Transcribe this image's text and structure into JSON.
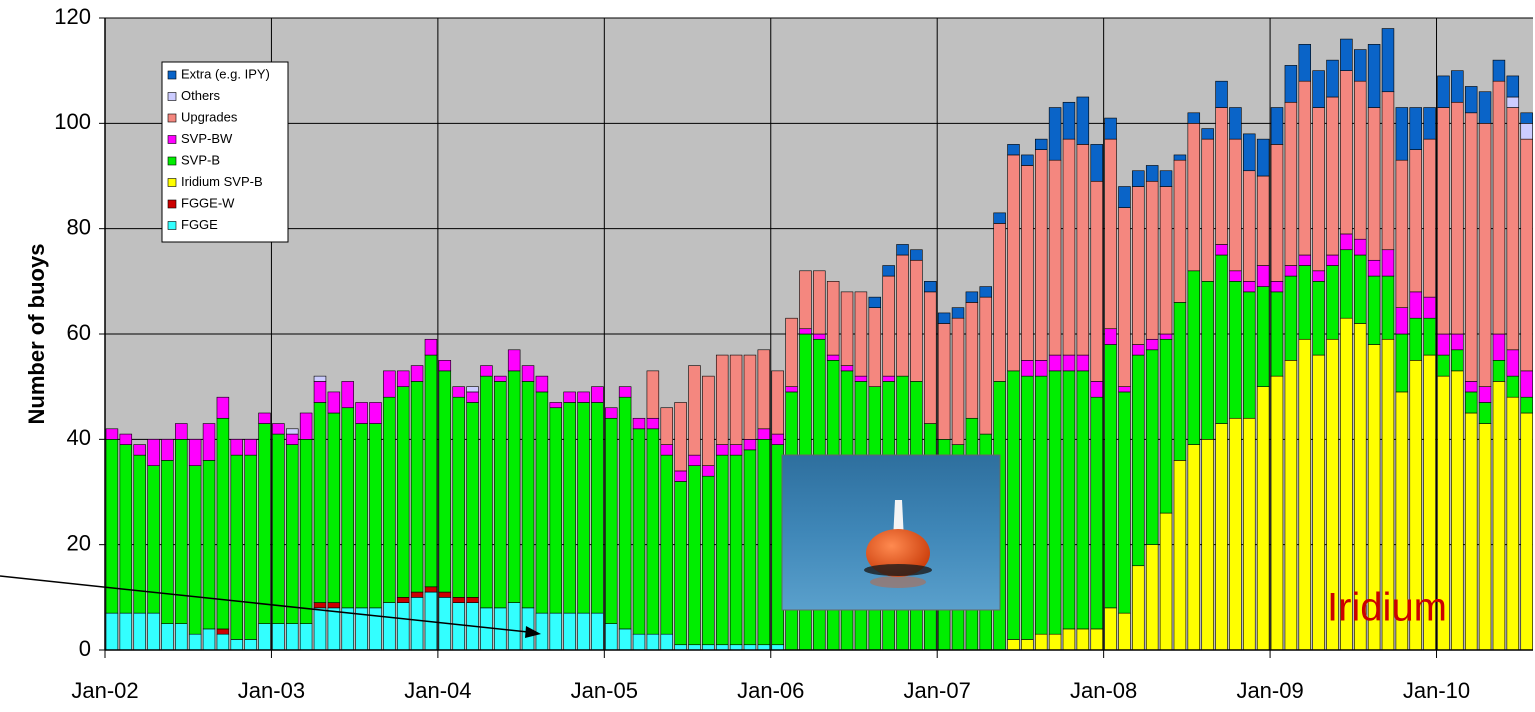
{
  "chart_data": {
    "type": "stacked_bar",
    "y_label": "Number of buoys",
    "annotation": "Iridium",
    "categories": [
      "Jan-02",
      null,
      null,
      null,
      null,
      null,
      null,
      null,
      null,
      null,
      null,
      null,
      "Jan-03",
      null,
      null,
      null,
      null,
      null,
      null,
      null,
      null,
      null,
      null,
      null,
      "Jan-04",
      null,
      null,
      null,
      null,
      null,
      null,
      null,
      null,
      null,
      null,
      null,
      "Jan-05",
      null,
      null,
      null,
      null,
      null,
      null,
      null,
      null,
      null,
      null,
      null,
      "Jan-06",
      null,
      null,
      null,
      null,
      null,
      null,
      null,
      null,
      null,
      null,
      null,
      "Jan-07",
      null,
      null,
      null,
      null,
      null,
      null,
      null,
      null,
      null,
      null,
      null,
      "Jan-08",
      null,
      null,
      null,
      null,
      null,
      null,
      null,
      null,
      null,
      null,
      null,
      "Jan-09",
      null,
      null,
      null,
      null,
      null,
      null,
      null,
      null,
      null,
      null,
      null,
      "Jan-10",
      null,
      null,
      null,
      null,
      null,
      null
    ],
    "ylim": [
      0,
      120
    ],
    "yticks": [
      0,
      20,
      40,
      60,
      80,
      100,
      120
    ],
    "grid": true,
    "background": "#c0c0c0",
    "legend": "upper-left",
    "series": [
      {
        "name": "FGGE",
        "color": "#33ffff",
        "values": [
          7,
          7,
          7,
          7,
          5,
          5,
          3,
          4,
          3,
          2,
          2,
          5,
          5,
          5,
          5,
          8,
          8,
          8,
          8,
          8,
          9,
          9,
          10,
          11,
          10,
          9,
          9,
          8,
          8,
          9,
          8,
          7,
          7,
          7,
          7,
          7,
          5,
          4,
          3,
          3,
          3,
          1,
          1,
          1,
          1,
          1,
          1,
          1,
          1,
          0,
          0,
          0,
          0,
          0,
          0,
          0,
          0,
          0,
          0,
          0,
          0,
          0,
          0,
          0,
          0,
          0,
          0,
          0,
          0,
          0,
          0,
          0,
          0,
          0,
          0,
          0,
          0,
          0,
          0,
          0,
          0,
          0,
          0,
          0,
          0,
          0,
          0,
          0,
          0,
          0,
          0,
          0,
          0,
          0,
          0,
          0,
          0,
          0,
          0,
          0,
          0,
          0,
          0
        ]
      },
      {
        "name": "FGGE-W",
        "color": "#cc0000",
        "values": [
          0,
          0,
          0,
          0,
          0,
          0,
          0,
          0,
          1,
          0,
          0,
          0,
          0,
          0,
          0,
          1,
          1,
          0,
          0,
          0,
          0,
          1,
          1,
          1,
          1,
          1,
          1,
          0,
          0,
          0,
          0,
          0,
          0,
          0,
          0,
          0,
          0,
          0,
          0,
          0,
          0,
          0,
          0,
          0,
          0,
          0,
          0,
          0,
          0,
          0,
          0,
          0,
          0,
          0,
          0,
          0,
          0,
          0,
          0,
          0,
          0,
          0,
          0,
          0,
          0,
          0,
          0,
          0,
          0,
          0,
          0,
          0,
          0,
          0,
          0,
          0,
          0,
          0,
          0,
          0,
          0,
          0,
          0,
          0,
          0,
          0,
          0,
          0,
          0,
          0,
          0,
          0,
          0,
          0,
          0,
          0,
          0,
          0,
          0,
          0,
          0,
          0,
          0
        ]
      },
      {
        "name": "Iridium SVP-B",
        "color": "#ffff00",
        "values": [
          0,
          0,
          0,
          0,
          0,
          0,
          0,
          0,
          0,
          0,
          0,
          0,
          0,
          0,
          0,
          0,
          0,
          0,
          0,
          0,
          0,
          0,
          0,
          0,
          0,
          0,
          0,
          0,
          0,
          0,
          0,
          0,
          0,
          0,
          0,
          0,
          0,
          0,
          0,
          0,
          0,
          0,
          0,
          0,
          0,
          0,
          0,
          0,
          0,
          0,
          0,
          0,
          0,
          0,
          0,
          0,
          0,
          0,
          0,
          0,
          0,
          0,
          0,
          0,
          0,
          2,
          2,
          3,
          3,
          4,
          4,
          4,
          8,
          7,
          16,
          20,
          26,
          36,
          39,
          40,
          43,
          44,
          44,
          50,
          52,
          55,
          59,
          56,
          59,
          63,
          62,
          58,
          59,
          49,
          55,
          56,
          52,
          53,
          45,
          43,
          51,
          48,
          45
        ]
      },
      {
        "name": "SVP-B",
        "color": "#00ee00",
        "values": [
          33,
          32,
          30,
          28,
          31,
          35,
          32,
          32,
          40,
          35,
          35,
          38,
          36,
          34,
          35,
          38,
          36,
          38,
          35,
          35,
          39,
          40,
          40,
          44,
          42,
          38,
          37,
          44,
          43,
          44,
          43,
          42,
          39,
          40,
          40,
          40,
          39,
          44,
          39,
          39,
          34,
          31,
          34,
          32,
          36,
          36,
          37,
          39,
          38,
          49,
          60,
          59,
          55,
          53,
          51,
          50,
          51,
          52,
          51,
          43,
          40,
          39,
          44,
          41,
          51,
          51,
          50,
          49,
          50,
          49,
          49,
          44,
          50,
          42,
          40,
          37,
          33,
          30,
          33,
          30,
          32,
          26,
          24,
          19,
          16,
          16,
          14,
          14,
          14,
          13,
          13,
          13,
          12,
          11,
          8,
          7,
          4,
          4,
          4,
          4,
          4,
          4,
          3
        ]
      },
      {
        "name": "SVP-BW",
        "color": "#ff00ff",
        "values": [
          2,
          2,
          2,
          5,
          4,
          3,
          5,
          7,
          4,
          3,
          3,
          2,
          2,
          2,
          5,
          4,
          4,
          5,
          4,
          4,
          5,
          3,
          3,
          3,
          2,
          2,
          2,
          2,
          1,
          4,
          3,
          3,
          1,
          2,
          2,
          3,
          2,
          2,
          2,
          2,
          2,
          2,
          2,
          2,
          2,
          2,
          2,
          2,
          2,
          1,
          1,
          1,
          1,
          1,
          1,
          0,
          1,
          0,
          0,
          0,
          0,
          0,
          0,
          0,
          0,
          0,
          3,
          3,
          3,
          3,
          3,
          3,
          3,
          1,
          2,
          2,
          1,
          0,
          0,
          0,
          2,
          2,
          2,
          4,
          2,
          2,
          2,
          2,
          2,
          3,
          3,
          3,
          5,
          5,
          5,
          4,
          4,
          3,
          2,
          3,
          5,
          5,
          5
        ]
      },
      {
        "name": "Upgrades",
        "color": "#f4877f",
        "values": [
          0,
          0,
          0,
          0,
          0,
          0,
          0,
          0,
          0,
          0,
          0,
          0,
          0,
          0,
          0,
          0,
          0,
          0,
          0,
          0,
          0,
          0,
          0,
          0,
          0,
          0,
          0,
          0,
          0,
          0,
          0,
          0,
          0,
          0,
          0,
          0,
          0,
          0,
          0,
          9,
          7,
          13,
          17,
          17,
          17,
          17,
          16,
          15,
          12,
          13,
          11,
          12,
          14,
          14,
          16,
          15,
          19,
          23,
          23,
          25,
          22,
          24,
          22,
          26,
          30,
          41,
          37,
          40,
          37,
          41,
          40,
          38,
          36,
          34,
          30,
          30,
          28,
          27,
          28,
          27,
          26,
          25,
          21,
          17,
          26,
          31,
          33,
          31,
          30,
          31,
          30,
          29,
          30,
          28,
          27,
          30,
          43,
          44,
          51,
          50,
          48,
          46,
          44
        ]
      },
      {
        "name": "Others",
        "color": "#ccccff",
        "values": [
          0,
          0,
          0,
          0,
          0,
          0,
          0,
          0,
          0,
          0,
          0,
          0,
          0,
          1,
          0,
          1,
          0,
          0,
          0,
          0,
          0,
          0,
          0,
          0,
          0,
          0,
          1,
          0,
          0,
          0,
          0,
          0,
          0,
          0,
          0,
          0,
          0,
          0,
          0,
          0,
          0,
          0,
          0,
          0,
          0,
          0,
          0,
          0,
          0,
          0,
          0,
          0,
          0,
          0,
          0,
          0,
          0,
          0,
          0,
          0,
          0,
          0,
          0,
          0,
          0,
          0,
          0,
          0,
          0,
          0,
          0,
          0,
          0,
          0,
          0,
          0,
          0,
          0,
          0,
          0,
          0,
          0,
          0,
          0,
          0,
          0,
          0,
          0,
          0,
          0,
          0,
          0,
          0,
          0,
          0,
          0,
          0,
          0,
          0,
          0,
          0,
          2,
          3
        ]
      },
      {
        "name": "Extra (e.g. IPY)",
        "color": "#0a64c8",
        "values": [
          0,
          0,
          0,
          0,
          0,
          0,
          0,
          0,
          0,
          0,
          0,
          0,
          0,
          0,
          0,
          0,
          0,
          0,
          0,
          0,
          0,
          0,
          0,
          0,
          0,
          0,
          0,
          0,
          0,
          0,
          0,
          0,
          0,
          0,
          0,
          0,
          0,
          0,
          0,
          0,
          0,
          0,
          0,
          0,
          0,
          0,
          0,
          0,
          0,
          0,
          0,
          0,
          0,
          0,
          0,
          2,
          2,
          2,
          2,
          2,
          2,
          2,
          2,
          2,
          2,
          2,
          2,
          2,
          10,
          7,
          9,
          7,
          4,
          4,
          3,
          3,
          3,
          1,
          2,
          2,
          5,
          6,
          7,
          7,
          7,
          7,
          7,
          7,
          7,
          6,
          6,
          12,
          12,
          10,
          8,
          6,
          6,
          6,
          5,
          6,
          4,
          4,
          2
        ]
      }
    ]
  }
}
